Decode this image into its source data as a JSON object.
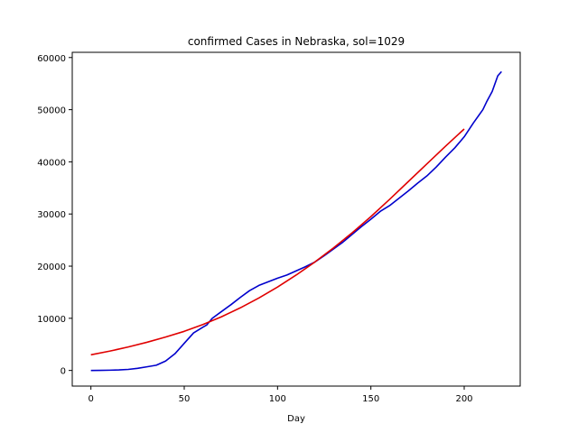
{
  "chart_data": {
    "type": "line",
    "title": "confirmed Cases in Nebraska, sol=1029",
    "xlabel": "Day",
    "ylabel": "",
    "xlim": [
      -10,
      230
    ],
    "ylim": [
      -3000,
      61000
    ],
    "xticks": [
      0,
      50,
      100,
      150,
      200
    ],
    "yticks": [
      0,
      10000,
      20000,
      30000,
      40000,
      50000,
      60000
    ],
    "grid": false,
    "legend": "none",
    "series": [
      {
        "color": "#0000cc",
        "x": [
          0,
          5,
          10,
          15,
          20,
          25,
          30,
          35,
          40,
          45,
          50,
          55,
          60,
          62,
          65,
          70,
          75,
          80,
          85,
          90,
          95,
          100,
          105,
          110,
          115,
          120,
          125,
          130,
          135,
          140,
          145,
          150,
          155,
          160,
          165,
          170,
          175,
          180,
          185,
          190,
          195,
          200,
          205,
          210,
          212,
          215,
          218,
          220
        ],
        "values": [
          0,
          20,
          50,
          100,
          200,
          400,
          700,
          1000,
          1800,
          3200,
          5200,
          7200,
          8300,
          8700,
          10000,
          11300,
          12600,
          14000,
          15300,
          16300,
          17000,
          17700,
          18300,
          19100,
          19900,
          20800,
          22000,
          23300,
          24600,
          26100,
          27600,
          29000,
          30500,
          31600,
          33000,
          34400,
          35900,
          37300,
          39000,
          40900,
          42700,
          44800,
          47500,
          50000,
          51500,
          53500,
          56500,
          57300
        ]
      },
      {
        "color": "#e00000",
        "x": [
          0,
          10,
          20,
          30,
          40,
          50,
          60,
          70,
          80,
          90,
          100,
          110,
          120,
          130,
          140,
          150,
          160,
          170,
          180,
          190,
          200
        ],
        "values": [
          3000,
          3700,
          4500,
          5400,
          6400,
          7500,
          8800,
          10300,
          12000,
          13900,
          16000,
          18300,
          20800,
          23500,
          26400,
          29500,
          32800,
          36200,
          39600,
          43000,
          46300
        ]
      }
    ]
  }
}
